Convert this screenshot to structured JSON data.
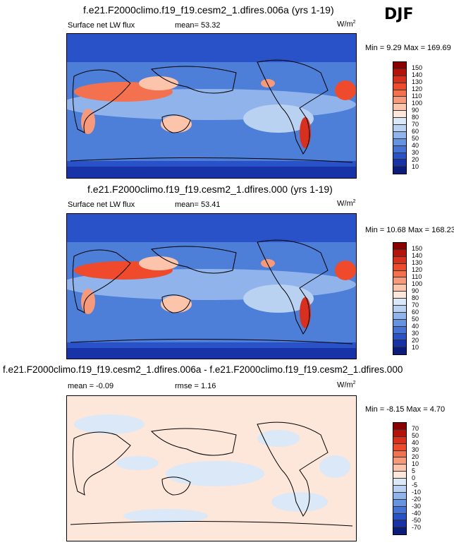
{
  "season": "DJF",
  "panels": [
    {
      "title": "f.e21.F2000climo.f19_f19.cesm2_1.dfires.006a (yrs 1-19)",
      "left_label": "Surface net LW flux",
      "mid_label": "mean=  53.32",
      "units": "W/m",
      "units_sup": "2",
      "minmax": "Min =   9.29 Max = 169.69",
      "ticks": [
        "150",
        "140",
        "130",
        "120",
        "110",
        "100",
        "90",
        "80",
        "70",
        "60",
        "50",
        "40",
        "30",
        "20",
        "10"
      ]
    },
    {
      "title": "f.e21.F2000climo.f19_f19.cesm2_1.dfires.000 (yrs 1-19)",
      "left_label": "Surface net LW flux",
      "mid_label": "mean=  53.41",
      "units": "W/m",
      "units_sup": "2",
      "minmax": "Min =  10.68 Max = 168.23",
      "ticks": [
        "150",
        "140",
        "130",
        "120",
        "110",
        "100",
        "90",
        "80",
        "70",
        "60",
        "50",
        "40",
        "30",
        "20",
        "10"
      ]
    },
    {
      "title": "f.e21.F2000climo.f19_f19.cesm2_1.dfires.006a - f.e21.F2000climo.f19_f19.cesm2_1.dfires.000",
      "left_label": "mean =  -0.09",
      "mid_label": "rmse =  1.16",
      "units": "W/m",
      "units_sup": "2",
      "minmax": "Min =  -8.15 Max =   4.70",
      "ticks": [
        "70",
        "50",
        "40",
        "30",
        "20",
        "10",
        "5",
        "0",
        "-5",
        "-10",
        "-20",
        "-30",
        "-40",
        "-50",
        "-70"
      ]
    }
  ],
  "colors": {
    "scale": [
      "#8b0000",
      "#b5120c",
      "#d7301f",
      "#ee4a2b",
      "#f4714f",
      "#f79a7b",
      "#fbc4ab",
      "#fde6da",
      "#dbe8f8",
      "#b9d2f1",
      "#8fb3ea",
      "#6893e0",
      "#4672d6",
      "#2a52c8",
      "#1833a8",
      "#0b1c7a"
    ]
  }
}
